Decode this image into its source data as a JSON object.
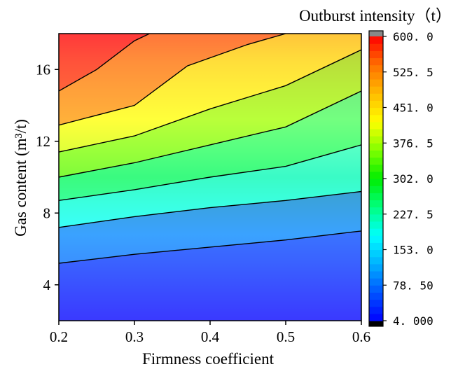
{
  "chart_data": {
    "type": "heatmap",
    "subtype": "filled-contour",
    "xlabel": "Firmness coefficient",
    "ylabel": "Gas content (m³/t)",
    "x_ticks": [
      "0.2",
      "0.3",
      "0.4",
      "0.5",
      "0.6"
    ],
    "y_ticks": [
      "4",
      "8",
      "12",
      "16"
    ],
    "xlim": [
      0.2,
      0.6
    ],
    "ylim": [
      2,
      18
    ],
    "colorbar": {
      "title": "Outburst intensity（t）",
      "ticks": [
        "600. 0",
        "525. 5",
        "451. 0",
        "376. 5",
        "302. 0",
        "227. 5",
        "153. 0",
        "78. 50",
        "4. 000"
      ],
      "range": [
        4,
        600
      ],
      "colors": [
        "#0000ff",
        "#0055ff",
        "#00b0ff",
        "#00ffff",
        "#00ff80",
        "#00ee00",
        "#80ff00",
        "#ffff00",
        "#ffbb00",
        "#ff7000",
        "#ff0000"
      ],
      "under_color": "#000000",
      "over_color": "#888888"
    },
    "contour_lines": [
      {
        "points": [
          [
            0.2,
            5.2
          ],
          [
            0.3,
            5.7
          ],
          [
            0.4,
            6.1
          ],
          [
            0.5,
            6.5
          ],
          [
            0.6,
            7.0
          ]
        ]
      },
      {
        "points": [
          [
            0.2,
            7.2
          ],
          [
            0.3,
            7.8
          ],
          [
            0.4,
            8.3
          ],
          [
            0.5,
            8.7
          ],
          [
            0.6,
            9.2
          ]
        ]
      },
      {
        "points": [
          [
            0.2,
            8.7
          ],
          [
            0.3,
            9.3
          ],
          [
            0.4,
            10.0
          ],
          [
            0.5,
            10.6
          ],
          [
            0.6,
            11.8
          ]
        ]
      },
      {
        "points": [
          [
            0.2,
            10.0
          ],
          [
            0.3,
            10.8
          ],
          [
            0.4,
            11.8
          ],
          [
            0.5,
            12.8
          ],
          [
            0.6,
            14.8
          ]
        ]
      },
      {
        "points": [
          [
            0.2,
            11.4
          ],
          [
            0.3,
            12.3
          ],
          [
            0.4,
            13.8
          ],
          [
            0.5,
            15.1
          ],
          [
            0.6,
            17.1
          ]
        ]
      },
      {
        "points": [
          [
            0.2,
            12.9
          ],
          [
            0.3,
            14.0
          ],
          [
            0.37,
            16.2
          ],
          [
            0.45,
            17.4
          ],
          [
            0.5,
            18.0
          ]
        ]
      },
      {
        "points": [
          [
            0.2,
            14.8
          ],
          [
            0.25,
            16.0
          ],
          [
            0.3,
            17.6
          ],
          [
            0.32,
            18.0
          ]
        ]
      }
    ]
  }
}
